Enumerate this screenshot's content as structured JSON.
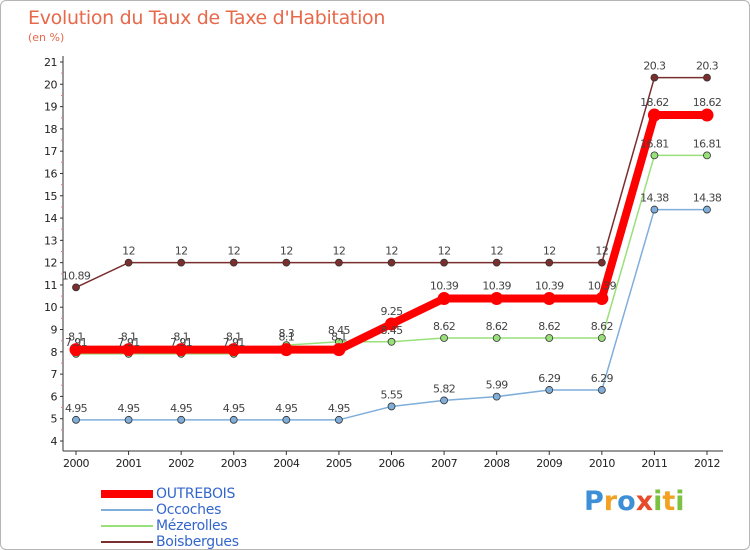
{
  "chart_data": {
    "type": "line",
    "title": "Evolution du Taux de Taxe d'Habitation",
    "subtitle": "(en %)",
    "xlabel": "",
    "ylabel": "",
    "ylim": [
      4,
      21
    ],
    "yticks": [
      "4",
      "5",
      "6",
      "7",
      "8",
      "9",
      "10",
      "11",
      "12",
      "13",
      "14",
      "15",
      "16",
      "17",
      "18",
      "19",
      "20",
      "21"
    ],
    "categories": [
      "2000",
      "2001",
      "2002",
      "2003",
      "2004",
      "2005",
      "2006",
      "2007",
      "2008",
      "2009",
      "2010",
      "2011",
      "2012"
    ],
    "series": [
      {
        "name": "Boisbergues",
        "color": "#7a2e2e",
        "values": [
          10.89,
          12,
          12,
          12,
          12,
          12,
          12,
          12,
          12,
          12,
          12,
          20.3,
          20.3
        ],
        "labels": [
          "10.89",
          "12",
          "12",
          "12",
          "12",
          "12",
          "12",
          "12",
          "12",
          "12",
          "12",
          "20.3",
          "20.3"
        ]
      },
      {
        "name": "Mézerolles",
        "color": "#99e07a",
        "values": [
          7.91,
          7.91,
          7.91,
          7.91,
          8.3,
          8.45,
          8.45,
          8.62,
          8.62,
          8.62,
          8.62,
          16.81,
          16.81
        ],
        "labels": [
          "7.91",
          "7.91",
          "7.91",
          "7.91",
          "8.3",
          "8.45",
          "8.45",
          "8.62",
          "8.62",
          "8.62",
          "8.62",
          "16.81",
          "16.81"
        ]
      },
      {
        "name": "Occoches",
        "color": "#7faedb",
        "values": [
          4.95,
          4.95,
          4.95,
          4.95,
          4.95,
          4.95,
          5.55,
          5.82,
          5.99,
          6.29,
          6.29,
          14.38,
          14.38
        ],
        "labels": [
          "4.95",
          "4.95",
          "4.95",
          "4.95",
          "4.95",
          "4.95",
          "5.55",
          "5.82",
          "5.99",
          "6.29",
          "6.29",
          "14.38",
          "14.38"
        ]
      },
      {
        "name": "OUTREBOIS",
        "color": "#ff0000",
        "values": [
          8.1,
          8.1,
          8.1,
          8.1,
          8.1,
          8.1,
          9.25,
          10.39,
          10.39,
          10.39,
          10.39,
          18.62,
          18.62
        ],
        "labels": [
          "8.1",
          "8.1",
          "8.1",
          "8.1",
          "8.1",
          "8.1",
          "9.25",
          "10.39",
          "10.39",
          "10.39",
          "10.39",
          "18.62",
          "18.62"
        ]
      }
    ],
    "legend": [
      "OUTREBOIS",
      "Occoches",
      "Mézerolles",
      "Boisbergues"
    ],
    "legend_position": "bottom-left",
    "grid": false
  },
  "brand": {
    "letters": [
      "P",
      "r",
      "o",
      "x",
      "i",
      "t",
      "i"
    ],
    "colors": [
      "#3d8fd6",
      "#f2a122",
      "#3d8fd6",
      "#e84a2c",
      "#7bc142",
      "#f2a122",
      "#7bc142"
    ]
  }
}
